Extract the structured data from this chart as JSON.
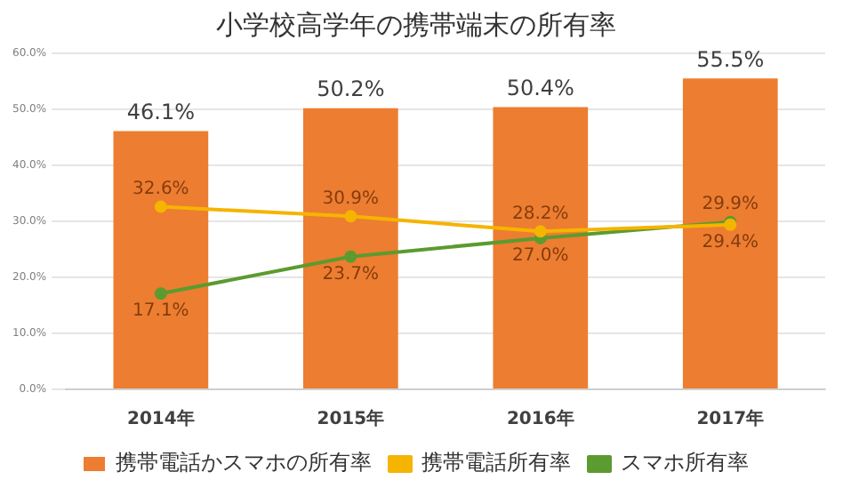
{
  "chart_data": {
    "type": "bar",
    "title": "小学校高学年の携帯端末の所有率",
    "categories": [
      "2014年",
      "2015年",
      "2016年",
      "2017年"
    ],
    "series": [
      {
        "name": "携帯電話かスマホの所有率",
        "color": "#ed7d31",
        "values": [
          46.1,
          50.2,
          50.4,
          55.5
        ],
        "value_labels": [
          "46.1%",
          "50.2%",
          "50.4%",
          "55.5%"
        ]
      },
      {
        "name": "携帯電話所有率",
        "type": "line",
        "color": "#f5b400",
        "values": [
          32.6,
          30.9,
          28.2,
          29.4
        ],
        "value_labels": [
          "32.6%",
          "30.9%",
          "28.2%",
          "29.4%"
        ]
      },
      {
        "name": "スマホ所有率",
        "type": "line",
        "color": "#5b9b2f",
        "values": [
          17.1,
          23.7,
          27.0,
          29.9
        ],
        "value_labels": [
          "17.1%",
          "23.7%",
          "27.0%",
          "29.9%"
        ]
      }
    ],
    "ylim": [
      0,
      60
    ],
    "yticks": [
      {
        "value": 0,
        "label": "0.0%"
      },
      {
        "value": 10,
        "label": "10.0%"
      },
      {
        "value": 20,
        "label": "20.0%"
      },
      {
        "value": 30,
        "label": "30.0%"
      },
      {
        "value": 40,
        "label": "40.0%"
      },
      {
        "value": 50,
        "label": "50.0%"
      },
      {
        "value": 60,
        "label": "60.0%"
      }
    ],
    "grid": "y",
    "legend": "bottom",
    "marker": "circle"
  }
}
